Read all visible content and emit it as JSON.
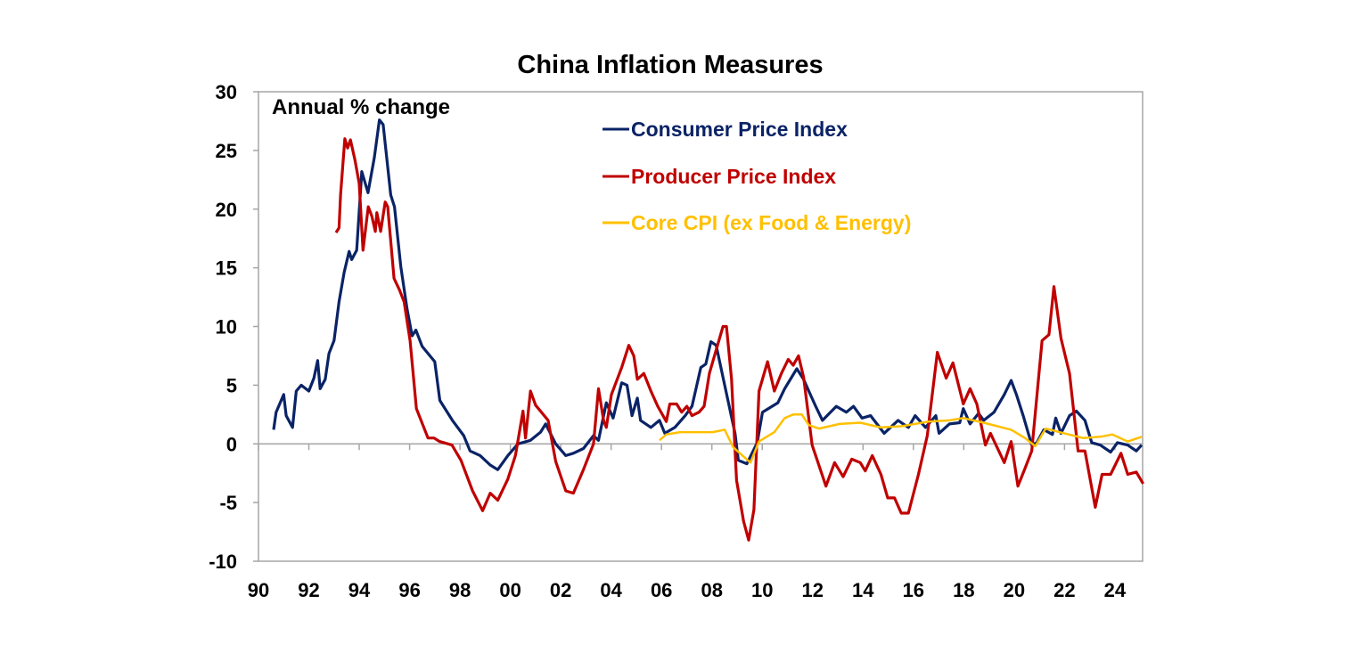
{
  "chart_data": {
    "type": "line",
    "title": "China Inflation Measures",
    "annotation": "Annual % change",
    "xlabel": "",
    "ylabel": "",
    "xlim": [
      1990,
      2025.1
    ],
    "ylim": [
      -10,
      30
    ],
    "x_tick_labels": [
      "90",
      "92",
      "94",
      "96",
      "98",
      "00",
      "02",
      "04",
      "06",
      "08",
      "10",
      "12",
      "14",
      "16",
      "18",
      "20",
      "22",
      "24"
    ],
    "y_tick_labels": [
      "30",
      "25",
      "20",
      "15",
      "10",
      "5",
      "0",
      "-5",
      "-10"
    ],
    "grid": false,
    "legend_position": "top-center",
    "series": [
      {
        "name": "Consumer Price Index",
        "color": "#0a2366",
        "x": [
          1990.6,
          1990.7,
          1991.0,
          1991.1,
          1991.35,
          1991.5,
          1991.7,
          1992.0,
          1992.2,
          1992.35,
          1992.45,
          1992.65,
          1992.8,
          1993.0,
          1993.2,
          1993.4,
          1993.6,
          1993.7,
          1993.9,
          1994.1,
          1994.35,
          1994.6,
          1994.8,
          1994.95,
          1995.25,
          1995.4,
          1995.65,
          1995.9,
          1996.1,
          1996.25,
          1996.5,
          1997.0,
          1997.2,
          1997.7,
          1998.15,
          1998.4,
          1998.8,
          1999.2,
          1999.5,
          1999.9,
          2000.3,
          2000.8,
          2001.2,
          2001.4,
          2001.8,
          2002.2,
          2002.5,
          2002.9,
          2003.3,
          2003.5,
          2003.81,
          2004.08,
          2004.42,
          2004.63,
          2004.83,
          2005.04,
          2005.17,
          2005.58,
          2005.92,
          2006.13,
          2006.53,
          2006.94,
          2007.21,
          2007.56,
          2007.76,
          2007.96,
          2008.17,
          2008.51,
          2008.92,
          2009.05,
          2009.39,
          2009.8,
          2010.01,
          2010.62,
          2010.89,
          2011.37,
          2011.64,
          2011.91,
          2012.12,
          2012.39,
          2012.94,
          2013.34,
          2013.62,
          2013.96,
          2014.3,
          2014.84,
          2015.39,
          2015.8,
          2016.07,
          2016.48,
          2016.89,
          2017.02,
          2017.43,
          2017.84,
          2017.98,
          2018.25,
          2018.59,
          2018.79,
          2019.2,
          2019.61,
          2019.88,
          2020.09,
          2020.36,
          2020.7,
          2020.9,
          2021.18,
          2021.52,
          2021.65,
          2021.86,
          2022.2,
          2022.47,
          2022.81,
          2023.08,
          2023.42,
          2023.83,
          2024.1,
          2024.51,
          2024.85,
          2025.06
        ],
        "y": [
          1.2,
          2.7,
          4.2,
          2.4,
          1.4,
          4.5,
          5.0,
          4.5,
          5.6,
          7.1,
          4.7,
          5.5,
          7.7,
          8.8,
          12.1,
          14.6,
          16.4,
          15.7,
          16.5,
          23.2,
          21.4,
          24.4,
          27.6,
          27.2,
          21.2,
          20.2,
          15.1,
          11.5,
          9.2,
          9.7,
          8.3,
          7.0,
          3.7,
          2.0,
          0.7,
          -0.6,
          -1.0,
          -1.8,
          -2.2,
          -1.0,
          0.0,
          0.3,
          1.0,
          1.7,
          0.0,
          -1.0,
          -0.8,
          -0.4,
          0.7,
          0.3,
          3.5,
          2.2,
          5.2,
          5.0,
          2.4,
          3.9,
          2.0,
          1.4,
          2.0,
          0.9,
          1.4,
          2.4,
          3.2,
          6.5,
          6.8,
          8.7,
          8.4,
          5.0,
          0.9,
          -1.4,
          -1.7,
          0.1,
          2.7,
          3.5,
          4.7,
          6.4,
          5.5,
          4.2,
          3.2,
          2.0,
          3.2,
          2.7,
          3.2,
          2.2,
          2.4,
          0.9,
          2.0,
          1.4,
          2.4,
          1.4,
          2.4,
          0.9,
          1.7,
          1.8,
          3.0,
          1.7,
          2.6,
          2.0,
          2.7,
          4.2,
          5.4,
          4.2,
          2.4,
          -0.1,
          0.1,
          1.2,
          0.8,
          2.2,
          0.9,
          2.4,
          2.8,
          2.0,
          0.1,
          -0.1,
          -0.7,
          0.1,
          -0.1,
          -0.6,
          -0.1
        ]
      },
      {
        "name": "Producer Price Index",
        "color": "#c00000",
        "x": [
          1993.08,
          1993.2,
          1993.26,
          1993.43,
          1993.54,
          1993.65,
          1993.83,
          1994.0,
          1994.15,
          1994.36,
          1994.5,
          1994.64,
          1994.7,
          1994.85,
          1995.03,
          1995.13,
          1995.38,
          1995.6,
          1995.78,
          1996.02,
          1996.27,
          1996.73,
          1996.97,
          1997.19,
          1997.68,
          1998.04,
          1998.5,
          1998.9,
          1999.2,
          1999.5,
          1999.9,
          2000.2,
          2000.5,
          2000.6,
          2000.8,
          2001.0,
          2001.5,
          2001.8,
          2002.2,
          2002.5,
          2002.9,
          2003.3,
          2003.5,
          2003.7,
          2003.81,
          2004.01,
          2004.42,
          2004.7,
          2004.9,
          2005.04,
          2005.3,
          2005.58,
          2005.85,
          2006.19,
          2006.33,
          2006.6,
          2006.8,
          2007.01,
          2007.21,
          2007.49,
          2007.69,
          2007.9,
          2008.17,
          2008.44,
          2008.58,
          2008.78,
          2008.98,
          2009.26,
          2009.46,
          2009.67,
          2009.87,
          2010.21,
          2010.48,
          2010.76,
          2011.03,
          2011.23,
          2011.44,
          2011.64,
          2011.98,
          2012.53,
          2012.87,
          2013.21,
          2013.55,
          2013.89,
          2014.09,
          2014.37,
          2014.71,
          2014.98,
          2015.25,
          2015.52,
          2015.8,
          2016.2,
          2016.55,
          2016.95,
          2017.3,
          2017.57,
          2017.98,
          2018.25,
          2018.52,
          2018.86,
          2019.06,
          2019.61,
          2019.88,
          2020.15,
          2020.43,
          2020.7,
          2021.11,
          2021.38,
          2021.58,
          2021.86,
          2022.2,
          2022.54,
          2022.81,
          2023.22,
          2023.49,
          2023.83,
          2024.24,
          2024.51,
          2024.85,
          2025.12
        ],
        "y": [
          18.0,
          18.4,
          21.2,
          26.0,
          25.2,
          25.9,
          24.2,
          22.2,
          16.5,
          20.2,
          19.4,
          18.1,
          19.7,
          18.1,
          20.6,
          20.2,
          14.1,
          13.1,
          12.1,
          8.8,
          3.0,
          0.5,
          0.5,
          0.2,
          -0.1,
          -1.4,
          -4.0,
          -5.7,
          -4.2,
          -4.8,
          -3.0,
          -1.0,
          2.8,
          0.5,
          4.5,
          3.3,
          2.0,
          -1.5,
          -4.0,
          -4.2,
          -2.2,
          0.0,
          4.7,
          2.0,
          1.4,
          4.2,
          6.5,
          8.4,
          7.5,
          5.5,
          6.0,
          4.5,
          3.2,
          1.9,
          3.4,
          3.4,
          2.7,
          3.2,
          2.4,
          2.7,
          3.2,
          6.0,
          8.0,
          10.0,
          10.0,
          5.5,
          -3.1,
          -6.6,
          -8.2,
          -5.6,
          4.5,
          7.0,
          4.5,
          6.0,
          7.2,
          6.7,
          7.5,
          5.7,
          -0.1,
          -3.6,
          -1.6,
          -2.8,
          -1.3,
          -1.6,
          -2.3,
          -1.0,
          -2.6,
          -4.6,
          -4.6,
          -5.9,
          -5.9,
          -2.6,
          0.7,
          7.8,
          5.6,
          6.9,
          3.4,
          4.7,
          3.4,
          -0.1,
          0.9,
          -1.6,
          0.2,
          -3.6,
          -2.1,
          -0.6,
          8.8,
          9.3,
          13.4,
          9.0,
          6.0,
          -0.6,
          -0.6,
          -5.4,
          -2.6,
          -2.6,
          -0.8,
          -2.6,
          -2.4,
          -3.4
        ]
      },
      {
        "name": "Core CPI (ex Food & Energy)",
        "color": "#ffc000",
        "x": [
          2005.92,
          2006.19,
          2006.74,
          2007.35,
          2008.03,
          2008.51,
          2008.85,
          2009.53,
          2009.87,
          2010.48,
          2010.89,
          2011.23,
          2011.57,
          2011.85,
          2012.25,
          2013.07,
          2013.89,
          2014.71,
          2015.52,
          2016.61,
          2017.43,
          2017.98,
          2018.79,
          2019.88,
          2020.43,
          2020.84,
          2021.25,
          2021.79,
          2022.74,
          2023.42,
          2023.9,
          2024.51,
          2025.06
        ],
        "y": [
          0.3,
          0.8,
          1.0,
          1.0,
          1.0,
          1.2,
          -0.3,
          -1.6,
          0.2,
          1.0,
          2.2,
          2.5,
          2.5,
          1.6,
          1.3,
          1.7,
          1.8,
          1.4,
          1.5,
          1.9,
          2.0,
          2.2,
          1.8,
          1.2,
          0.5,
          -0.2,
          1.3,
          1.0,
          0.5,
          0.6,
          0.8,
          0.2,
          0.6
        ]
      }
    ]
  }
}
